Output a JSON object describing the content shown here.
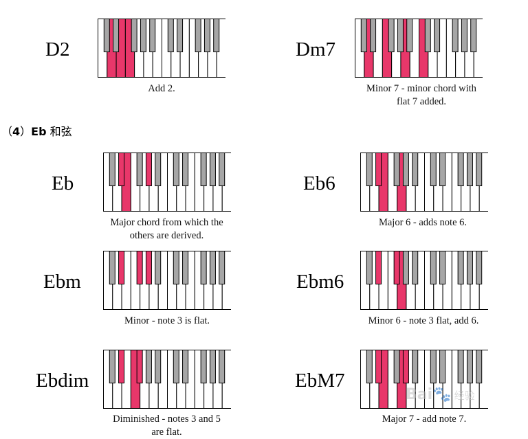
{
  "section": {
    "prefix": "（",
    "number": "4",
    "suffix": "）",
    "chord_root": "Eb",
    "label": "和弦"
  },
  "colors": {
    "highlight": "#e8376a",
    "black_key": "#a6a6a6",
    "white_key": "#ffffff"
  },
  "chords": [
    {
      "name": "D2",
      "caption": [
        "Add 2."
      ],
      "white_keys_pressed": [
        1,
        2,
        3
      ],
      "black_keys_pressed": []
    },
    {
      "name": "Dm7",
      "caption": [
        "Minor 7 - minor chord with",
        "flat 7 added."
      ],
      "white_keys_pressed": [
        1,
        3,
        5,
        7
      ],
      "black_keys_pressed": []
    },
    {
      "name": "Eb",
      "caption": [
        "Major chord from which the",
        "others are derived."
      ],
      "white_keys_pressed": [
        2
      ],
      "black_keys_pressed": [
        1,
        3
      ]
    },
    {
      "name": "Eb6",
      "caption": [
        "Major 6 - adds note 6."
      ],
      "white_keys_pressed": [
        2,
        4
      ],
      "black_keys_pressed": [
        1
      ]
    },
    {
      "name": "Ebm",
      "caption": [
        "Minor - note 3 is flat."
      ],
      "white_keys_pressed": [],
      "black_keys_pressed": [
        1,
        2,
        3
      ]
    },
    {
      "name": "Ebm6",
      "caption": [
        "Minor 6 - note 3 flat, add 6."
      ],
      "white_keys_pressed": [
        4
      ],
      "black_keys_pressed": [
        1,
        2
      ]
    },
    {
      "name": "Ebdim",
      "caption": [
        "Diminished - notes 3 and 5",
        "are flat."
      ],
      "white_keys_pressed": [
        3
      ],
      "black_keys_pressed": [
        1,
        2
      ]
    },
    {
      "name": "EbM7",
      "caption": [
        "Major 7 - add note 7."
      ],
      "white_keys_pressed": [
        2,
        4
      ],
      "black_keys_pressed": [
        1,
        3
      ]
    }
  ],
  "watermark": {
    "text": "Bai",
    "paw": "🐾",
    "tail": "经验"
  }
}
